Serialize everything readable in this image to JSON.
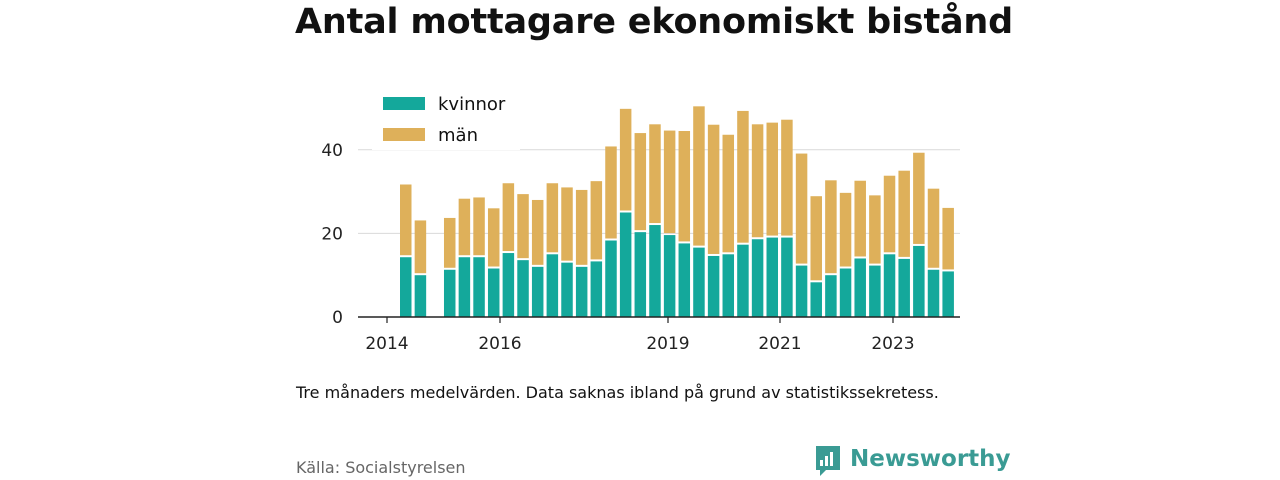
{
  "title": "Antal mottagare ekonomiskt bistånd",
  "note": "Tre månaders medelvärden. Data saknas ibland på grund av statistikssekretess.",
  "source": "Källa: Socialstyrelsen",
  "brand": {
    "name": "Newsworthy",
    "icon": "newsworthy-bar-chart-icon",
    "color": "#3a9b94"
  },
  "chart_data": {
    "type": "bar",
    "stacked": true,
    "x_tick_labels": [
      "2014",
      "2016",
      "2019",
      "2021",
      "2023"
    ],
    "y_tick_labels": [
      "0",
      "20",
      "40"
    ],
    "ylim": [
      0,
      52
    ],
    "grid": true,
    "legend_placement": "top-left",
    "categories": [
      "2014 Q2",
      "2014 Q3",
      "2014 Q4",
      "2015 Q1",
      "2015 Q2",
      "2015 Q3",
      "2015 Q4",
      "2016 Q1",
      "2016 Q2",
      "2016 Q3",
      "2016 Q4",
      "2017 Q1",
      "2017 Q2",
      "2017 Q3",
      "2017 Q4",
      "2018 Q1",
      "2018 Q2",
      "2018 Q3",
      "2018 Q4",
      "2019 Q1",
      "2019 Q2",
      "2019 Q3",
      "2019 Q4",
      "2020 Q1",
      "2020 Q2",
      "2020 Q3",
      "2020 Q4",
      "2021 Q1",
      "2021 Q2",
      "2021 Q3",
      "2021 Q4",
      "2022 Q1",
      "2022 Q2",
      "2022 Q3",
      "2022 Q4",
      "2023 Q1",
      "2023 Q2",
      "2023 Q3"
    ],
    "series": [
      {
        "name": "kvinnor",
        "color": "#14a89b",
        "values": [
          14.3,
          10,
          null,
          11.3,
          14.3,
          14.3,
          11.6,
          15.3,
          13.6,
          12,
          15,
          13,
          12,
          13.3,
          18.3,
          25,
          20.3,
          22,
          19.6,
          17.6,
          16.6,
          14.6,
          15,
          17.3,
          18.6,
          19,
          19,
          12.3,
          8.3,
          10,
          11.6,
          14,
          12.3,
          15,
          13.9,
          17,
          11.3,
          10.9
        ]
      },
      {
        "name": "män",
        "color": "#deb05a",
        "values": [
          17.4,
          13.1,
          null,
          12.4,
          14,
          14.3,
          14.4,
          16.7,
          15.8,
          16,
          17,
          18,
          18.4,
          19.2,
          22.5,
          24.8,
          23.7,
          24.1,
          25,
          26.9,
          33.8,
          31.4,
          28.6,
          32,
          27.5,
          27.5,
          28.2,
          26.8,
          20.6,
          22.7,
          18.1,
          18.6,
          16.8,
          18.8,
          21.1,
          22.3,
          19.4,
          15.2
        ]
      }
    ]
  }
}
